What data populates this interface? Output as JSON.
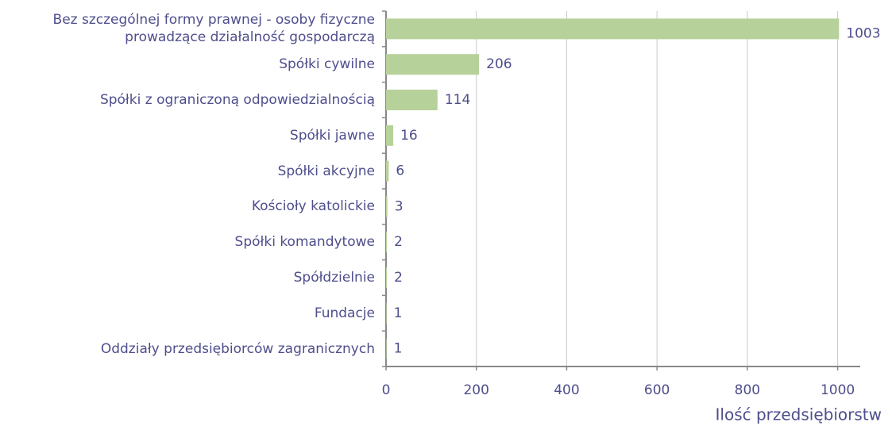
{
  "chart_data": {
    "type": "bar",
    "orientation": "horizontal",
    "categories": [
      "Bez szczególnej formy prawnej - osoby fizyczne\nprowadzące działalność gospodarczą",
      "Spółki cywilne",
      "Spółki z ograniczoną odpowiedzialnością",
      "Spółki jawne",
      "Spółki akcyjne",
      "Kościoły katolickie",
      "Spółki komandytowe",
      "Spółdzielnie",
      "Fundacje",
      "Oddziały przedsiębiorców zagranicznych"
    ],
    "values": [
      1003,
      206,
      114,
      16,
      6,
      3,
      2,
      2,
      1,
      1
    ],
    "color": "#b7d19a",
    "xlim": [
      0,
      1050
    ],
    "xticks": [
      0,
      200,
      400,
      600,
      800,
      1000
    ],
    "grid": true,
    "x_label": "Ilość przedsiębiorstw"
  }
}
